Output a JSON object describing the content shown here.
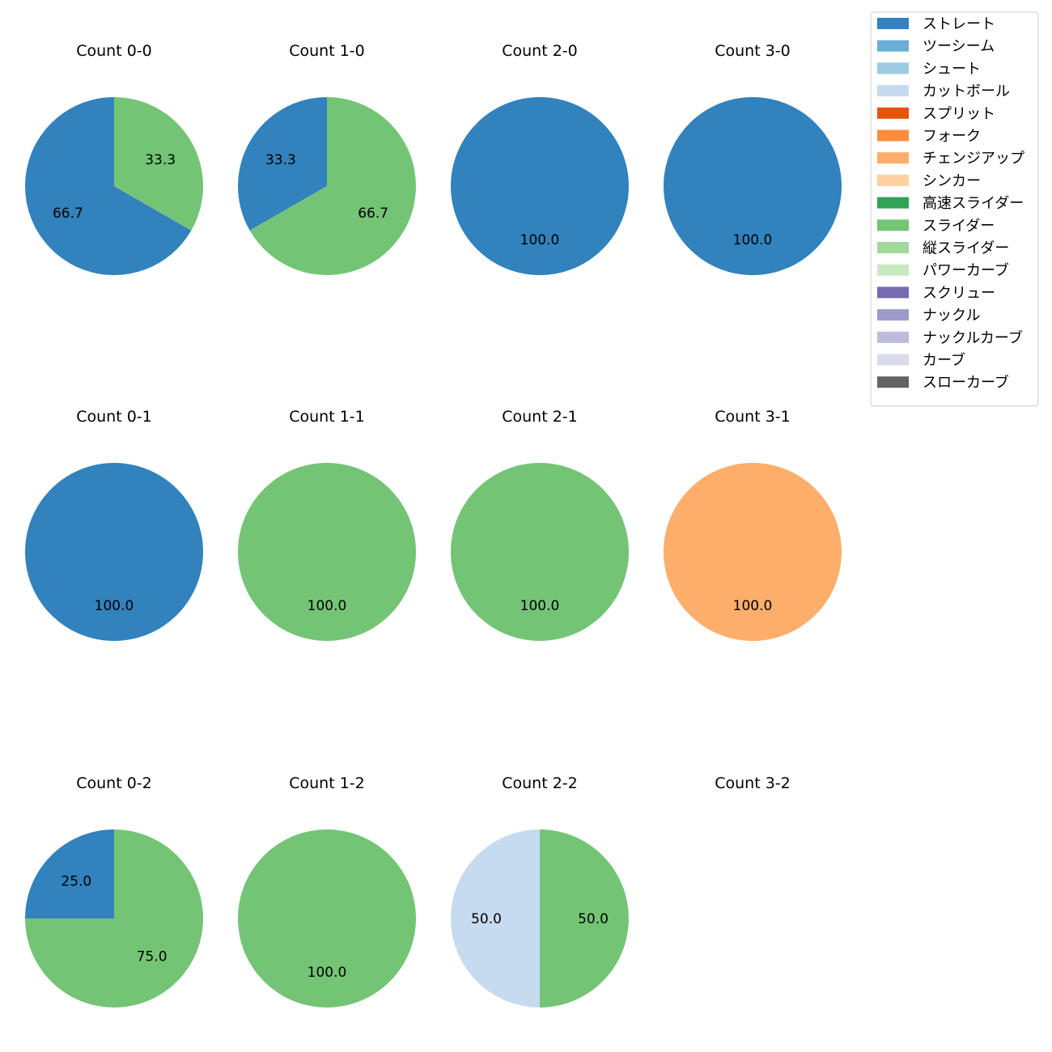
{
  "chart_data": {
    "type": "pie",
    "label_format": "%.1f",
    "legend": {
      "location": "upper-right",
      "entries": [
        {
          "name": "ストレート",
          "color": "#3182bd"
        },
        {
          "name": "ツーシーム",
          "color": "#6baed6"
        },
        {
          "name": "シュート",
          "color": "#9ecae1"
        },
        {
          "name": "カットボール",
          "color": "#c6dbef"
        },
        {
          "name": "スプリット",
          "color": "#e6550d"
        },
        {
          "name": "フォーク",
          "color": "#fd8d3c"
        },
        {
          "name": "チェンジアップ",
          "color": "#fdae6b"
        },
        {
          "name": "シンカー",
          "color": "#fdd0a2"
        },
        {
          "name": "高速スライダー",
          "color": "#31a354"
        },
        {
          "name": "スライダー",
          "color": "#74c476"
        },
        {
          "name": "縦スライダー",
          "color": "#a1d99b"
        },
        {
          "name": "パワーカーブ",
          "color": "#c7e9c0"
        },
        {
          "name": "スクリュー",
          "color": "#756bb1"
        },
        {
          "name": "ナックル",
          "color": "#9e9ac8"
        },
        {
          "name": "ナックルカーブ",
          "color": "#bcbddc"
        },
        {
          "name": "カーブ",
          "color": "#dadaeb"
        },
        {
          "name": "スローカーブ",
          "color": "#636363"
        }
      ]
    },
    "panels": [
      {
        "title": "Count 0-0",
        "slices": [
          {
            "pitch": "ストレート",
            "value": 66.7
          },
          {
            "pitch": "スライダー",
            "value": 33.3
          }
        ]
      },
      {
        "title": "Count 1-0",
        "slices": [
          {
            "pitch": "ストレート",
            "value": 33.3
          },
          {
            "pitch": "スライダー",
            "value": 66.7
          }
        ]
      },
      {
        "title": "Count 2-0",
        "slices": [
          {
            "pitch": "ストレート",
            "value": 100.0
          }
        ]
      },
      {
        "title": "Count 3-0",
        "slices": [
          {
            "pitch": "ストレート",
            "value": 100.0
          }
        ]
      },
      {
        "title": "Count 0-1",
        "slices": [
          {
            "pitch": "ストレート",
            "value": 100.0
          }
        ]
      },
      {
        "title": "Count 1-1",
        "slices": [
          {
            "pitch": "スライダー",
            "value": 100.0
          }
        ]
      },
      {
        "title": "Count 2-1",
        "slices": [
          {
            "pitch": "スライダー",
            "value": 100.0
          }
        ]
      },
      {
        "title": "Count 3-1",
        "slices": [
          {
            "pitch": "チェンジアップ",
            "value": 100.0
          }
        ]
      },
      {
        "title": "Count 0-2",
        "slices": [
          {
            "pitch": "ストレート",
            "value": 25.0
          },
          {
            "pitch": "スライダー",
            "value": 75.0
          }
        ]
      },
      {
        "title": "Count 1-2",
        "slices": [
          {
            "pitch": "スライダー",
            "value": 100.0
          }
        ]
      },
      {
        "title": "Count 2-2",
        "slices": [
          {
            "pitch": "カットボール",
            "value": 50.0
          },
          {
            "pitch": "スライダー",
            "value": 50.0
          }
        ]
      },
      {
        "title": "Count 3-2",
        "slices": []
      }
    ]
  }
}
